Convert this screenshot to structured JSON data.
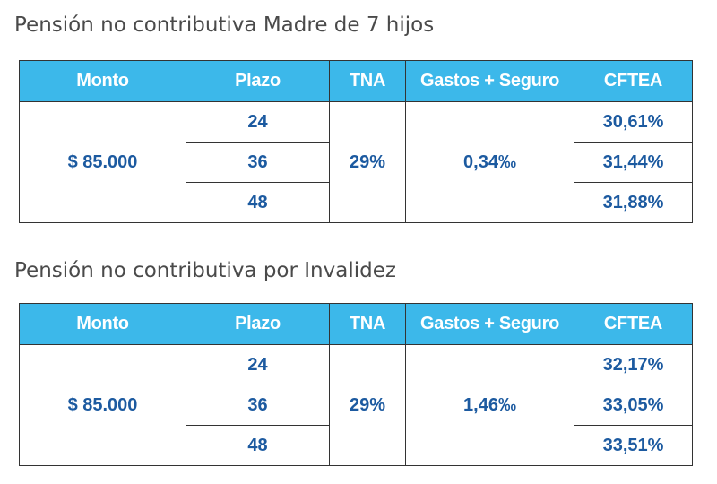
{
  "sections": [
    {
      "title": "Pensión no contributiva Madre de 7 hijos",
      "headers": [
        "Monto",
        "Plazo",
        "TNA",
        "Gastos + Seguro",
        "CFTEA"
      ],
      "monto": "$ 85.000",
      "tna": "29%",
      "gastos": "0,34‰",
      "rows": [
        {
          "plazo": "24",
          "cftea": "30,61%"
        },
        {
          "plazo": "36",
          "cftea": "31,44%"
        },
        {
          "plazo": "48",
          "cftea": "31,88%"
        }
      ]
    },
    {
      "title": "Pensión no contributiva por Invalidez",
      "headers": [
        "Monto",
        "Plazo",
        "TNA",
        "Gastos + Seguro",
        "CFTEA"
      ],
      "monto": "$ 85.000",
      "tna": "29%",
      "gastos": "1,46‰",
      "rows": [
        {
          "plazo": "24",
          "cftea": "32,17%"
        },
        {
          "plazo": "36",
          "cftea": "33,05%"
        },
        {
          "plazo": "48",
          "cftea": "33,51%"
        }
      ]
    }
  ],
  "colors": {
    "header_bg": "#3cb8ea",
    "header_text": "#ffffff",
    "cell_text": "#1c5aa0",
    "title_text": "#4a4a4a",
    "border": "#333333"
  }
}
